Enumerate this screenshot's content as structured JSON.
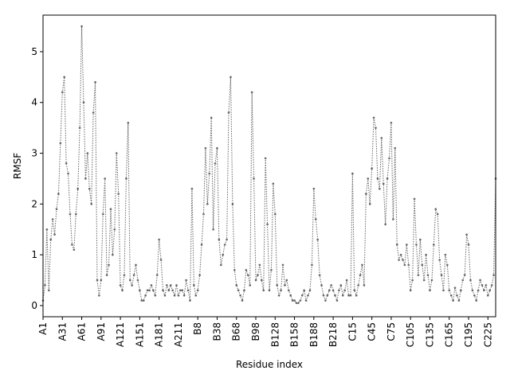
{
  "chart_data": {
    "type": "line",
    "title": "",
    "xlabel": "Residue index",
    "ylabel": "RMSF",
    "xlim": [
      0,
      234
    ],
    "ylim": [
      -0.22,
      5.72
    ],
    "yticks": [
      0,
      1,
      2,
      3,
      4,
      5
    ],
    "xtick_labels": [
      "A1",
      "A31",
      "A61",
      "A91",
      "A121",
      "A151",
      "A181",
      "A211",
      "B8",
      "B38",
      "B68",
      "B98",
      "B128",
      "B158",
      "B188",
      "B218",
      "C15",
      "C45",
      "C75",
      "C105",
      "C135",
      "C165",
      "C195",
      "C225"
    ],
    "xtick_positions": [
      0,
      10,
      20,
      30,
      40,
      50,
      60,
      70,
      80,
      90,
      100,
      110,
      120,
      130,
      140,
      150,
      160,
      170,
      180,
      190,
      200,
      210,
      220,
      230
    ],
    "grid": false,
    "line_style": "dotted",
    "series_color": "#666666",
    "knots": [
      [
        0,
        0.1
      ],
      [
        1,
        0.4
      ],
      [
        2,
        1.5
      ],
      [
        3,
        0.3
      ],
      [
        4,
        1.3
      ],
      [
        5,
        1.7
      ],
      [
        6,
        1.4
      ],
      [
        7,
        1.9
      ],
      [
        8,
        2.2
      ],
      [
        9,
        3.2
      ],
      [
        10,
        4.2
      ],
      [
        11,
        4.5
      ],
      [
        12,
        2.8
      ],
      [
        13,
        2.6
      ],
      [
        14,
        1.8
      ],
      [
        15,
        1.2
      ],
      [
        16,
        1.1
      ],
      [
        17,
        1.8
      ],
      [
        18,
        2.3
      ],
      [
        19,
        3.5
      ],
      [
        20,
        5.5
      ],
      [
        21,
        4.0
      ],
      [
        22,
        2.5
      ],
      [
        23,
        3.0
      ],
      [
        24,
        2.3
      ],
      [
        25,
        2.0
      ],
      [
        26,
        3.8
      ],
      [
        27,
        4.4
      ],
      [
        28,
        0.5
      ],
      [
        29,
        0.2
      ],
      [
        30,
        0.5
      ],
      [
        31,
        1.8
      ],
      [
        32,
        2.5
      ],
      [
        33,
        0.6
      ],
      [
        34,
        0.8
      ],
      [
        35,
        1.9
      ],
      [
        36,
        1.0
      ],
      [
        37,
        1.5
      ],
      [
        38,
        3.0
      ],
      [
        39,
        2.2
      ],
      [
        40,
        0.4
      ],
      [
        41,
        0.3
      ],
      [
        42,
        0.6
      ],
      [
        43,
        2.5
      ],
      [
        44,
        3.6
      ],
      [
        45,
        0.5
      ],
      [
        46,
        0.4
      ],
      [
        47,
        0.6
      ],
      [
        48,
        0.8
      ],
      [
        49,
        0.5
      ],
      [
        50,
        0.3
      ],
      [
        51,
        0.1
      ],
      [
        52,
        0.1
      ],
      [
        53,
        0.2
      ],
      [
        54,
        0.3
      ],
      [
        55,
        0.3
      ],
      [
        56,
        0.4
      ],
      [
        57,
        0.3
      ],
      [
        58,
        0.2
      ],
      [
        59,
        0.6
      ],
      [
        60,
        1.3
      ],
      [
        61,
        0.9
      ],
      [
        62,
        0.3
      ],
      [
        63,
        0.2
      ],
      [
        64,
        0.4
      ],
      [
        65,
        0.3
      ],
      [
        66,
        0.4
      ],
      [
        67,
        0.3
      ],
      [
        68,
        0.2
      ],
      [
        69,
        0.4
      ],
      [
        70,
        0.2
      ],
      [
        71,
        0.3
      ],
      [
        72,
        0.3
      ],
      [
        73,
        0.2
      ],
      [
        74,
        0.5
      ],
      [
        75,
        0.3
      ],
      [
        76,
        0.1
      ],
      [
        77,
        2.3
      ],
      [
        78,
        0.4
      ],
      [
        79,
        0.2
      ],
      [
        80,
        0.3
      ],
      [
        81,
        0.6
      ],
      [
        82,
        1.2
      ],
      [
        83,
        1.8
      ],
      [
        84,
        3.1
      ],
      [
        85,
        2.0
      ],
      [
        86,
        2.6
      ],
      [
        87,
        3.7
      ],
      [
        88,
        1.5
      ],
      [
        89,
        2.8
      ],
      [
        90,
        3.1
      ],
      [
        91,
        1.3
      ],
      [
        92,
        0.8
      ],
      [
        93,
        1.0
      ],
      [
        94,
        1.2
      ],
      [
        95,
        1.3
      ],
      [
        96,
        3.8
      ],
      [
        97,
        4.5
      ],
      [
        98,
        2.0
      ],
      [
        99,
        0.7
      ],
      [
        100,
        0.4
      ],
      [
        101,
        0.3
      ],
      [
        102,
        0.2
      ],
      [
        103,
        0.1
      ],
      [
        104,
        0.3
      ],
      [
        105,
        0.7
      ],
      [
        106,
        0.6
      ],
      [
        107,
        0.4
      ],
      [
        108,
        4.2
      ],
      [
        109,
        2.5
      ],
      [
        110,
        0.5
      ],
      [
        111,
        0.6
      ],
      [
        112,
        0.8
      ],
      [
        113,
        0.5
      ],
      [
        114,
        0.3
      ],
      [
        115,
        2.9
      ],
      [
        116,
        1.6
      ],
      [
        117,
        0.3
      ],
      [
        118,
        0.7
      ],
      [
        119,
        2.4
      ],
      [
        120,
        1.8
      ],
      [
        121,
        0.4
      ],
      [
        122,
        0.2
      ],
      [
        123,
        0.3
      ],
      [
        124,
        0.8
      ],
      [
        125,
        0.4
      ],
      [
        126,
        0.5
      ],
      [
        127,
        0.3
      ],
      [
        128,
        0.2
      ],
      [
        129,
        0.1
      ],
      [
        130,
        0.1
      ],
      [
        131,
        0.05
      ],
      [
        132,
        0.05
      ],
      [
        133,
        0.1
      ],
      [
        134,
        0.2
      ],
      [
        135,
        0.3
      ],
      [
        136,
        0.1
      ],
      [
        137,
        0.2
      ],
      [
        138,
        0.3
      ],
      [
        139,
        0.8
      ],
      [
        140,
        2.3
      ],
      [
        141,
        1.7
      ],
      [
        142,
        1.3
      ],
      [
        143,
        0.6
      ],
      [
        144,
        0.4
      ],
      [
        145,
        0.2
      ],
      [
        146,
        0.1
      ],
      [
        147,
        0.2
      ],
      [
        148,
        0.3
      ],
      [
        149,
        0.4
      ],
      [
        150,
        0.3
      ],
      [
        151,
        0.2
      ],
      [
        152,
        0.1
      ],
      [
        153,
        0.3
      ],
      [
        154,
        0.4
      ],
      [
        155,
        0.2
      ],
      [
        156,
        0.3
      ],
      [
        157,
        0.5
      ],
      [
        158,
        0.2
      ],
      [
        159,
        0.2
      ],
      [
        160,
        2.6
      ],
      [
        161,
        0.3
      ],
      [
        162,
        0.2
      ],
      [
        163,
        0.4
      ],
      [
        164,
        0.6
      ],
      [
        165,
        0.8
      ],
      [
        166,
        0.4
      ],
      [
        167,
        2.2
      ],
      [
        168,
        2.5
      ],
      [
        169,
        2.0
      ],
      [
        170,
        2.7
      ],
      [
        171,
        3.7
      ],
      [
        172,
        3.5
      ],
      [
        173,
        2.5
      ],
      [
        174,
        2.3
      ],
      [
        175,
        3.3
      ],
      [
        176,
        2.4
      ],
      [
        177,
        1.6
      ],
      [
        178,
        2.5
      ],
      [
        179,
        2.9
      ],
      [
        180,
        3.6
      ],
      [
        181,
        1.7
      ],
      [
        182,
        3.1
      ],
      [
        183,
        1.2
      ],
      [
        184,
        0.9
      ],
      [
        185,
        1.0
      ],
      [
        186,
        0.9
      ],
      [
        187,
        0.8
      ],
      [
        188,
        1.2
      ],
      [
        189,
        0.8
      ],
      [
        190,
        0.3
      ],
      [
        191,
        0.5
      ],
      [
        192,
        2.1
      ],
      [
        193,
        1.2
      ],
      [
        194,
        0.6
      ],
      [
        195,
        1.3
      ],
      [
        196,
        0.8
      ],
      [
        197,
        0.5
      ],
      [
        198,
        1.0
      ],
      [
        199,
        0.6
      ],
      [
        200,
        0.3
      ],
      [
        201,
        0.5
      ],
      [
        202,
        1.2
      ],
      [
        203,
        1.9
      ],
      [
        204,
        1.8
      ],
      [
        205,
        0.9
      ],
      [
        206,
        0.6
      ],
      [
        207,
        0.3
      ],
      [
        208,
        1.0
      ],
      [
        209,
        0.8
      ],
      [
        210,
        0.3
      ],
      [
        211,
        0.2
      ],
      [
        212,
        0.1
      ],
      [
        213,
        0.35
      ],
      [
        214,
        0.2
      ],
      [
        215,
        0.1
      ],
      [
        216,
        0.3
      ],
      [
        217,
        0.5
      ],
      [
        218,
        0.6
      ],
      [
        219,
        1.4
      ],
      [
        220,
        1.2
      ],
      [
        221,
        0.5
      ],
      [
        222,
        0.3
      ],
      [
        223,
        0.2
      ],
      [
        224,
        0.1
      ],
      [
        225,
        0.3
      ],
      [
        226,
        0.5
      ],
      [
        227,
        0.4
      ],
      [
        228,
        0.3
      ],
      [
        229,
        0.4
      ],
      [
        230,
        0.2
      ],
      [
        231,
        0.3
      ],
      [
        232,
        0.4
      ],
      [
        233,
        0.6
      ],
      [
        234,
        2.5
      ]
    ]
  }
}
